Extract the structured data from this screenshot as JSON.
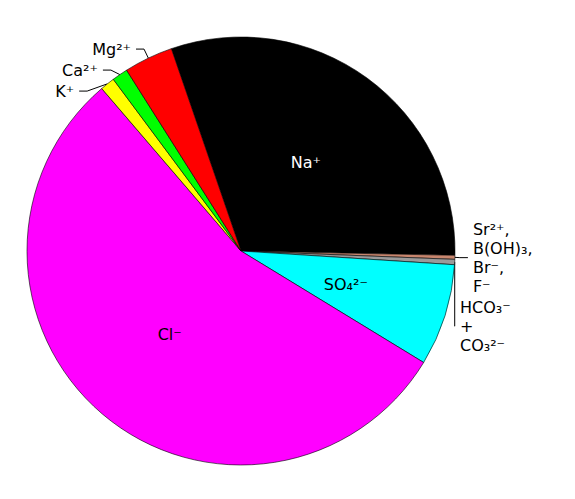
{
  "chart_data": {
    "type": "pie",
    "categories": [
      "Na⁺",
      "Sr²⁺, B(OH)₃, Br⁻, F⁻",
      "HCO₃⁻ + CO₃²⁻",
      "SO₄²⁻",
      "Cl⁻",
      "K⁺",
      "Ca²⁺",
      "Mg²⁺"
    ],
    "values": [
      30.6,
      0.3,
      0.4,
      7.7,
      55.0,
      1.1,
      1.2,
      3.7
    ],
    "colors": [
      "#000000",
      "#c8866e",
      "#9a9a9a",
      "#00ffff",
      "#ff00ff",
      "#ffff00",
      "#00ff00",
      "#ff0000"
    ]
  }
}
